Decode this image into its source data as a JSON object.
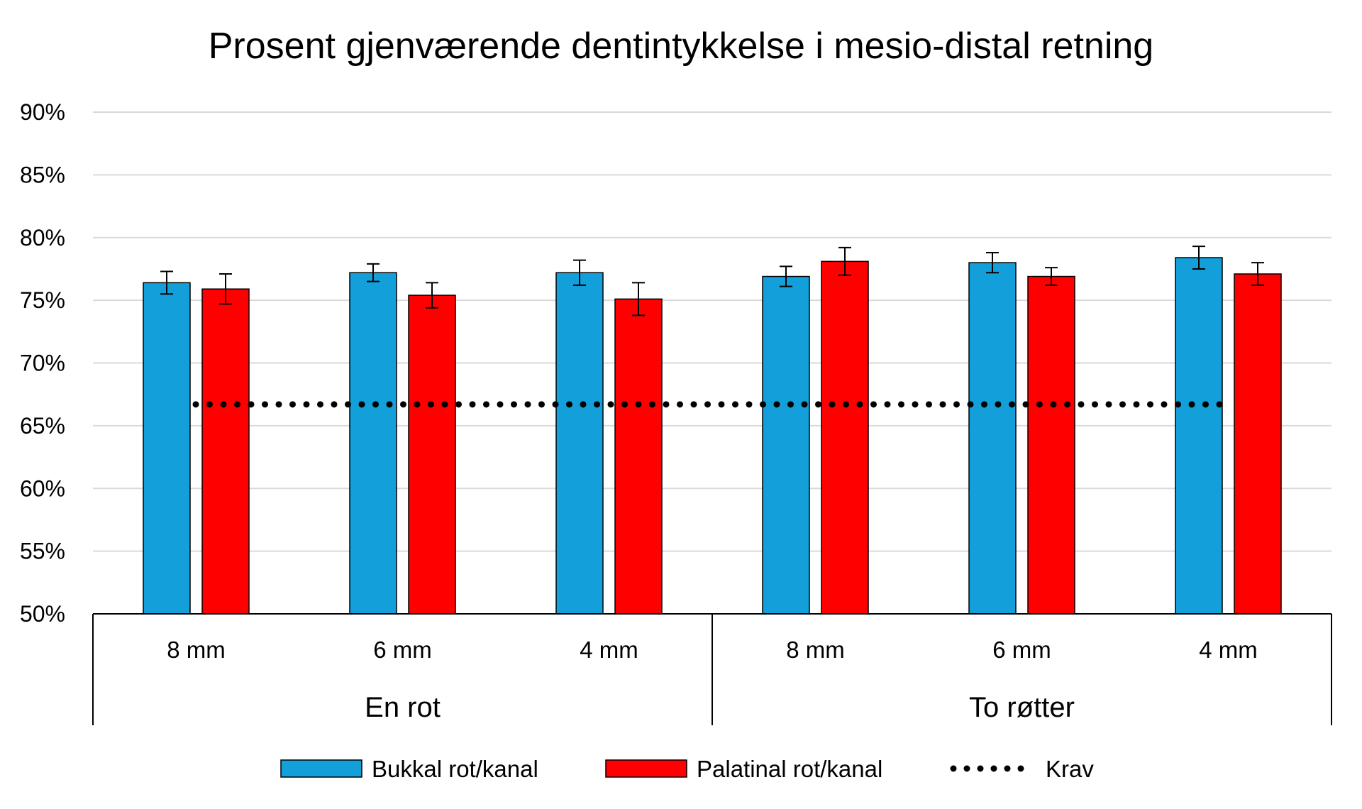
{
  "chart_data": {
    "type": "bar",
    "title": "Prosent gjenværende dentintykkelse i mesio-distal retning",
    "xlabel": "",
    "ylabel": "",
    "ylim": [
      50,
      90
    ],
    "ytick_step": 5,
    "yticks": [
      "50%",
      "55%",
      "60%",
      "65%",
      "70%",
      "75%",
      "80%",
      "85%",
      "90%"
    ],
    "grid": true,
    "legend_position": "bottom",
    "categories": [
      "8 mm",
      "6 mm",
      "4 mm",
      "8 mm",
      "6 mm",
      "4 mm"
    ],
    "groups": [
      {
        "label": "En rot",
        "span": 3
      },
      {
        "label": "To røtter",
        "span": 3
      }
    ],
    "series": [
      {
        "name": "Bukkal rot/kanal",
        "color": "#139FD9",
        "values": [
          76.4,
          77.2,
          77.2,
          76.9,
          78.0,
          78.4
        ],
        "errors": [
          0.9,
          0.7,
          1.0,
          0.8,
          0.8,
          0.9
        ]
      },
      {
        "name": "Palatinal rot/kanal",
        "color": "#FF0000",
        "values": [
          75.9,
          75.4,
          75.1,
          78.1,
          76.9,
          77.1
        ],
        "errors": [
          1.2,
          1.0,
          1.3,
          1.1,
          0.7,
          0.9
        ]
      }
    ],
    "reference_line": {
      "name": "Krav",
      "value": 66.7,
      "style": "dotted",
      "color": "#000000"
    }
  }
}
